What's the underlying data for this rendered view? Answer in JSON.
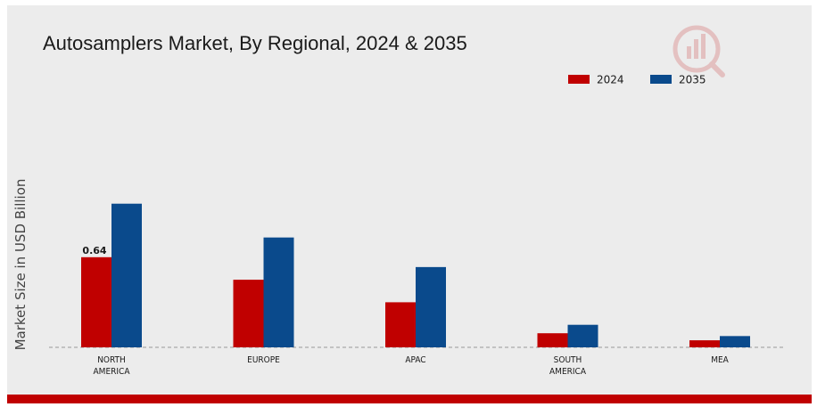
{
  "chart_data": {
    "type": "bar",
    "title": "Autosamplers Market, By Regional, 2024 & 2035",
    "ylabel": "Market Size in USD Billion",
    "xlabel": "",
    "categories": [
      [
        "NORTH",
        "AMERICA"
      ],
      [
        "EUROPE"
      ],
      [
        "APAC"
      ],
      [
        "SOUTH",
        "AMERICA"
      ],
      [
        "MEA"
      ]
    ],
    "series": [
      {
        "name": "2024",
        "color": "#c00000",
        "values": [
          0.64,
          0.48,
          0.32,
          0.1,
          0.05
        ]
      },
      {
        "name": "2035",
        "color": "#0a4a8c",
        "values": [
          1.02,
          0.78,
          0.57,
          0.16,
          0.08
        ]
      }
    ],
    "data_labels": [
      {
        "series": 0,
        "index": 0,
        "text": "0.64"
      }
    ],
    "ylim": [
      0,
      1.6
    ],
    "grid": false,
    "legend_position": "top-right",
    "baseline_style": "dashed"
  },
  "colors": {
    "background": "#ececec",
    "footer_bar": "#c00000",
    "text": "#1a1a1a",
    "axis_label": "#444444",
    "baseline": "#999999"
  },
  "logo_icon": "market-research-logo-icon"
}
